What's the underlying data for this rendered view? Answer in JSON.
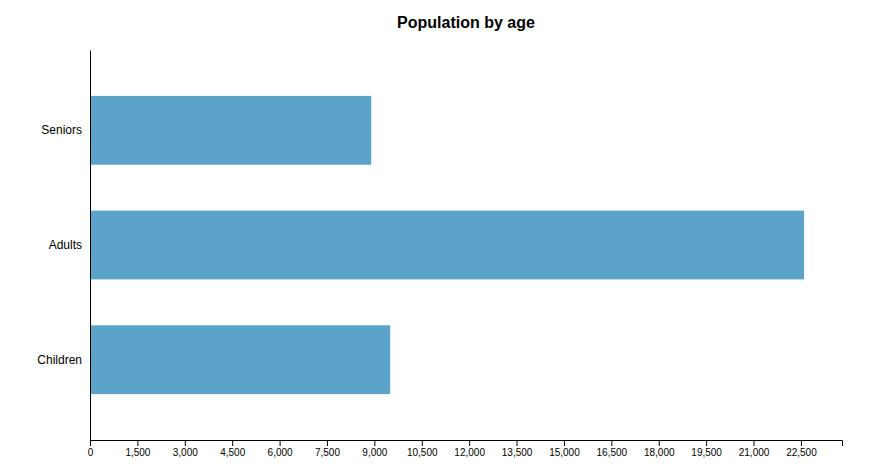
{
  "chart_data": {
    "type": "bar",
    "orientation": "horizontal",
    "title": "Population by age",
    "categories": [
      "Children",
      "Adults",
      "Seniors"
    ],
    "values": [
      9500,
      22600,
      8900
    ],
    "color": "#5BA3C9",
    "xlim": [
      0,
      23800
    ],
    "xticks": [
      0,
      {
        "value": 1500,
        "label": "1,500"
      },
      {
        "value": 3000,
        "label": "3,000"
      },
      {
        "value": 4500,
        "label": "4,500"
      },
      {
        "value": 6000,
        "label": "6,000"
      },
      {
        "value": 7500,
        "label": "7,500"
      },
      {
        "value": 9000,
        "label": "9,000"
      },
      {
        "value": 10500,
        "label": "10,500"
      },
      {
        "value": 12000,
        "label": "12,000"
      },
      {
        "value": 13500,
        "label": "13,500"
      },
      {
        "value": 15000,
        "label": "15,000"
      },
      {
        "value": 16500,
        "label": "16,500"
      },
      {
        "value": 18000,
        "label": "18,000"
      },
      {
        "value": 19500,
        "label": "19,500"
      },
      {
        "value": 21000,
        "label": "21,000"
      },
      {
        "value": 22500,
        "label": "22,500"
      }
    ],
    "grid": false
  }
}
